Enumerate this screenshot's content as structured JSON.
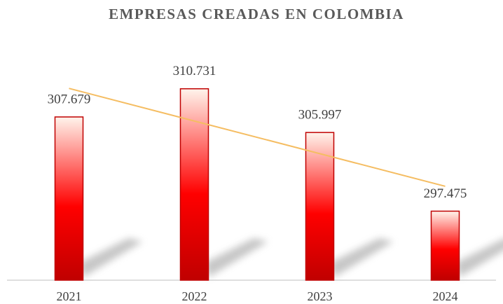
{
  "chart_data": {
    "type": "bar",
    "title": "EMPRESAS CREADAS EN COLOMBIA",
    "categories": [
      "2021",
      "2022",
      "2023",
      "2024"
    ],
    "values": [
      307679,
      310731,
      305997,
      297475
    ],
    "value_labels": [
      "307.679",
      "310.731",
      "305.997",
      "297.475"
    ],
    "color": "#ff0000",
    "edge_color": "#c00000",
    "ylim": [
      290000,
      312000
    ],
    "trendline": true,
    "trendline_color": "#f5bd62"
  }
}
